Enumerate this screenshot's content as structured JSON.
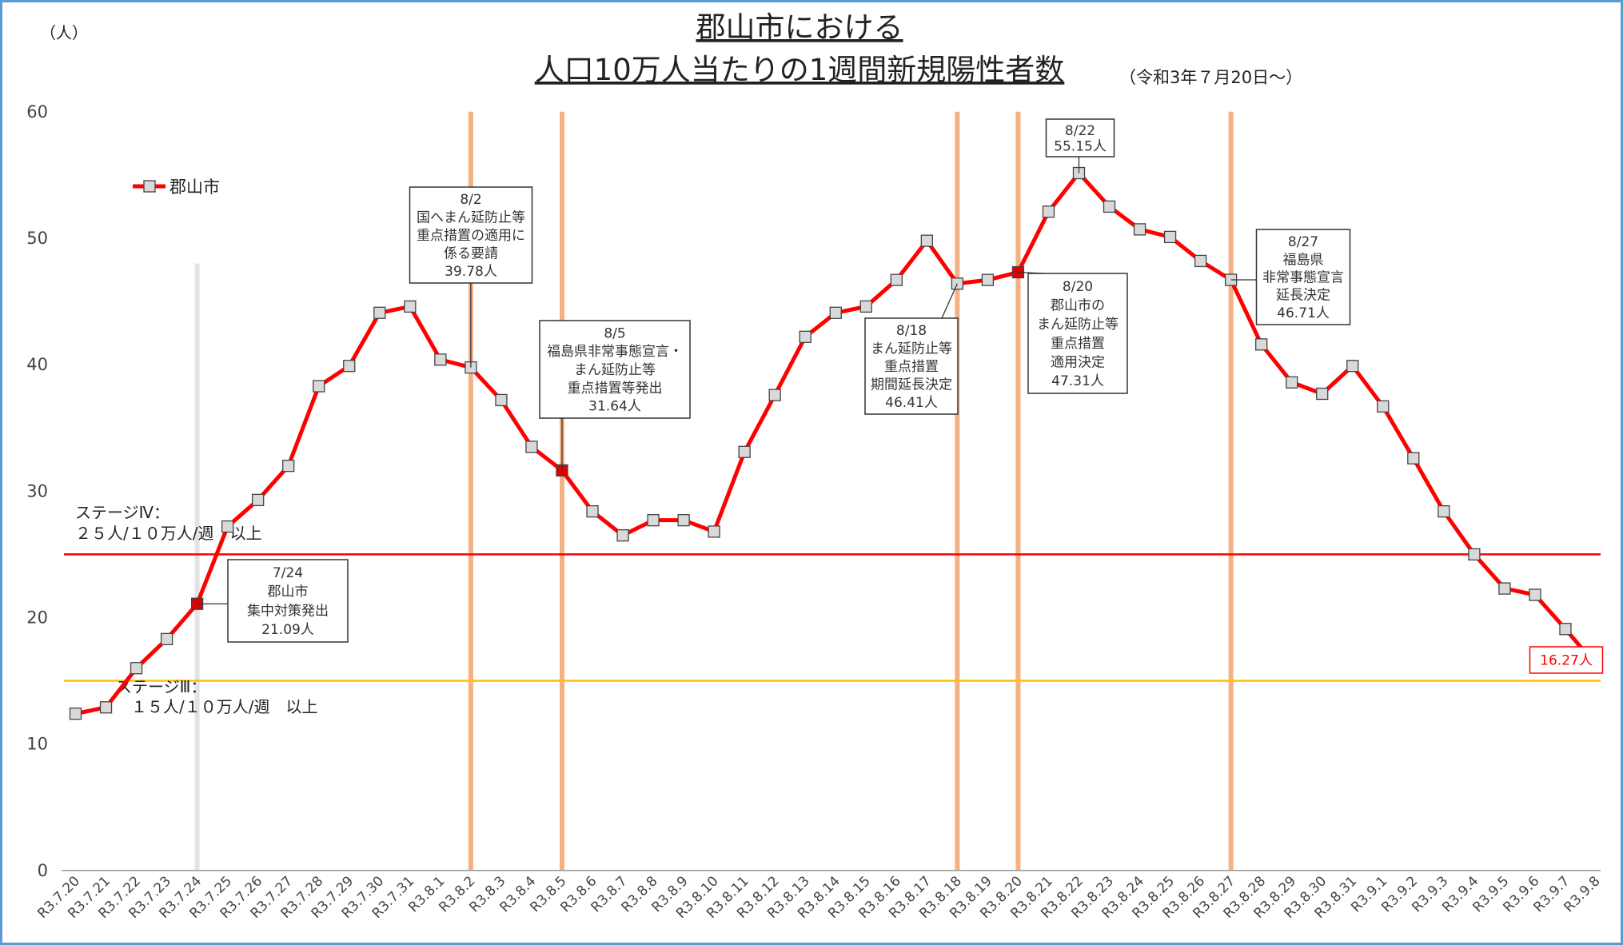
{
  "chart_data": {
    "type": "line",
    "title": "郡山市における",
    "subtitle": "人口10万人当たりの1週間新規陽性者数",
    "note": "（令和3年７月20日～）",
    "y_label": "（人）",
    "categories": [
      "R3.7.20",
      "R3.7.21",
      "R3.7.22",
      "R3.7.23",
      "R3.7.24",
      "R3.7.25",
      "R3.7.26",
      "R3.7.27",
      "R3.7.28",
      "R3.7.29",
      "R3.7.30",
      "R3.7.31",
      "R3.8.1",
      "R3.8.2",
      "R3.8.3",
      "R3.8.4",
      "R3.8.5",
      "R3.8.6",
      "R3.8.7",
      "R3.8.8",
      "R3.8.9",
      "R3.8.10",
      "R3.8.11",
      "R3.8.12",
      "R3.8.13",
      "R3.8.14",
      "R3.8.15",
      "R3.8.16",
      "R3.8.17",
      "R3.8.18",
      "R3.8.19",
      "R3.8.20",
      "R3.8.21",
      "R3.8.22",
      "R3.8.23",
      "R3.8.24",
      "R3.8.25",
      "R3.8.26",
      "R3.8.27",
      "R3.8.28",
      "R3.8.29",
      "R3.8.30",
      "R3.8.31",
      "R3.9.1",
      "R3.9.2",
      "R3.9.3",
      "R3.9.4",
      "R3.9.5",
      "R3.9.6",
      "R3.9.7",
      "R3.9.8"
    ],
    "series": [
      {
        "name": "郡山市",
        "color": "#ff0000",
        "marker_color": "#d9d9d9",
        "highlight_color": "#e00000",
        "highlighted": [
          "R3.7.24",
          "R3.8.5",
          "R3.8.20"
        ],
        "values": [
          12.4,
          12.9,
          16.0,
          18.3,
          21.09,
          27.2,
          29.3,
          32.0,
          38.3,
          39.9,
          44.1,
          44.6,
          40.4,
          39.78,
          37.2,
          33.5,
          31.64,
          28.4,
          26.5,
          27.7,
          27.7,
          26.8,
          33.1,
          37.6,
          42.2,
          44.1,
          44.6,
          46.7,
          49.8,
          46.41,
          46.7,
          47.31,
          52.1,
          55.15,
          52.5,
          50.7,
          50.1,
          48.2,
          46.71,
          41.6,
          38.6,
          37.7,
          39.9,
          36.7,
          32.6,
          28.4,
          25.0,
          22.3,
          21.8,
          19.1,
          16.27
        ]
      }
    ],
    "ylim": [
      0,
      60
    ],
    "yticks": [
      0,
      10,
      20,
      30,
      40,
      50,
      60
    ],
    "grid": false,
    "legend": "upper left",
    "reference_lines_y": [
      {
        "y": 25,
        "color": "#ff0000",
        "label": [
          "ステージⅣ：",
          "２５人/１０万人/週　以上"
        ]
      },
      {
        "y": 15,
        "color": "#ffc000",
        "label": [
          "ステージⅢ：",
          "１５人/１０万人/週　以上"
        ]
      }
    ],
    "reference_lines_x": [
      {
        "x": "R3.7.24",
        "color": "#e3e3e3"
      },
      {
        "x": "R3.8.2",
        "color": "#f4b183"
      },
      {
        "x": "R3.8.5",
        "color": "#f4b183"
      },
      {
        "x": "R3.8.18",
        "color": "#f4b183"
      },
      {
        "x": "R3.8.20",
        "color": "#f4b183"
      },
      {
        "x": "R3.8.27",
        "color": "#f4b183"
      }
    ],
    "annotations": [
      {
        "category": "R3.7.24",
        "lines": [
          "7/24",
          "郡山市",
          "集中対策発出",
          "21.09人"
        ]
      },
      {
        "category": "R3.8.2",
        "lines": [
          "8/2",
          "国へまん延防止等",
          "重点措置の適用に",
          "係る要請",
          "39.78人"
        ]
      },
      {
        "category": "R3.8.5",
        "lines": [
          "8/5",
          "福島県非常事態宣言・",
          "まん延防止等",
          "重点措置等発出",
          "31.64人"
        ]
      },
      {
        "category": "R3.8.18",
        "lines": [
          "8/18",
          "まん延防止等",
          "重点措置",
          "期間延長決定",
          "46.41人"
        ]
      },
      {
        "category": "R3.8.20",
        "lines": [
          "8/20",
          "郡山市の",
          "まん延防止等",
          "重点措置",
          "適用決定",
          "47.31人"
        ]
      },
      {
        "category": "R3.8.22",
        "lines": [
          "8/22",
          "55.15人"
        ]
      },
      {
        "category": "R3.8.27",
        "lines": [
          "8/27",
          "福島県",
          "非常事態宣言",
          "延長決定",
          "46.71人"
        ]
      },
      {
        "category": "R3.9.8",
        "lines": [
          "16.27人"
        ],
        "color": "#ff0000"
      }
    ]
  }
}
